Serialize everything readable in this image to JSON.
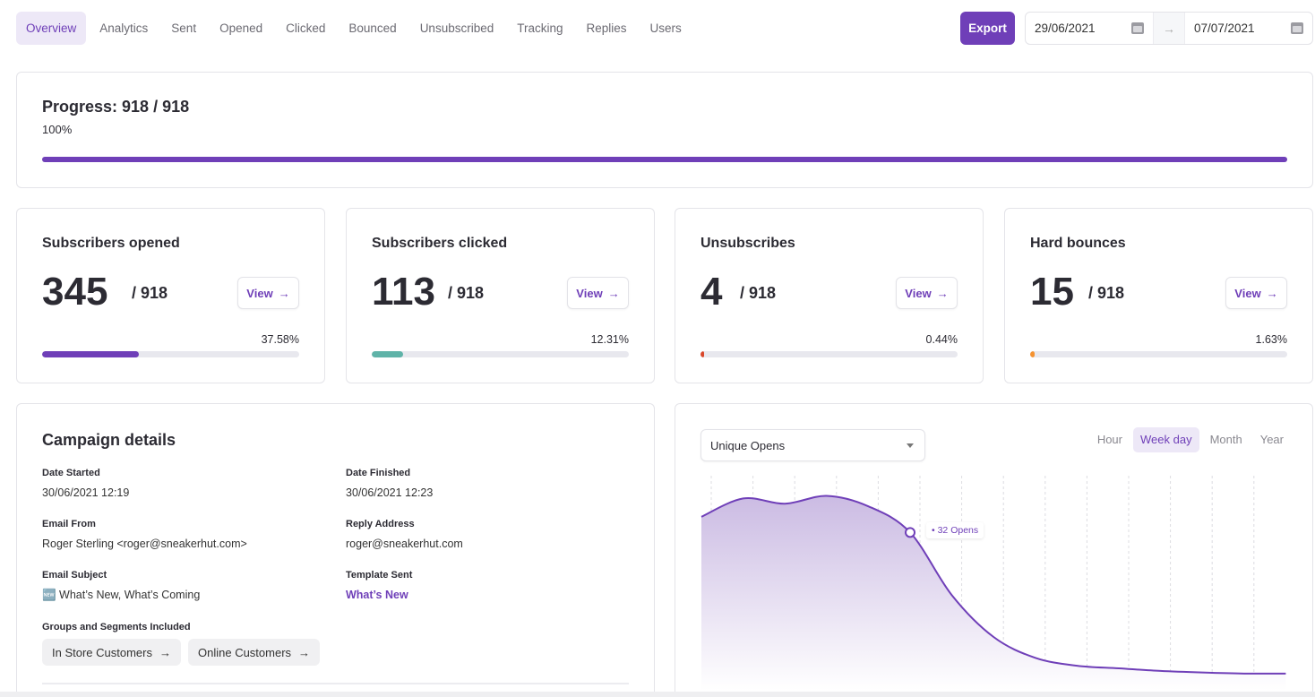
{
  "nav": {
    "tabs": [
      {
        "label": "Overview",
        "active": true
      },
      {
        "label": "Analytics"
      },
      {
        "label": "Sent"
      },
      {
        "label": "Opened"
      },
      {
        "label": "Clicked"
      },
      {
        "label": "Bounced"
      },
      {
        "label": "Unsubscribed"
      },
      {
        "label": "Tracking"
      },
      {
        "label": "Replies"
      },
      {
        "label": "Users"
      }
    ]
  },
  "toolbar": {
    "export_label": "Export",
    "date_from": "29/06/2021",
    "date_to": "07/07/2021",
    "arrow": "→"
  },
  "progress": {
    "title": "Progress: 918 / 918",
    "percent_label": "100%",
    "value": 1.0
  },
  "stats": [
    {
      "title": "Subscribers opened",
      "value": "345",
      "total": "/ 918",
      "percent": "37.58%",
      "fraction": 0.3758,
      "color": "#6f3fb8",
      "view_label": "View"
    },
    {
      "title": "Subscribers clicked",
      "value": "113",
      "total": "/ 918",
      "percent": "12.31%",
      "fraction": 0.1231,
      "color": "#5fb3a8",
      "view_label": "View"
    },
    {
      "title": "Unsubscribes",
      "value": "4",
      "total": "/ 918",
      "percent": "0.44%",
      "fraction": 0.0044,
      "color": "#d9482b",
      "view_label": "View"
    },
    {
      "title": "Hard bounces",
      "value": "15",
      "total": "/ 918",
      "percent": "1.63%",
      "fraction": 0.0163,
      "color": "#f59331",
      "view_label": "View"
    }
  ],
  "campaign": {
    "title": "Campaign details",
    "date_started_label": "Date Started",
    "date_started": "30/06/2021 12:19",
    "date_finished_label": "Date Finished",
    "date_finished": "30/06/2021 12:23",
    "email_from_label": "Email From",
    "email_from": "Roger Sterling <roger@sneakerhut.com>",
    "reply_label": "Reply Address",
    "reply": "roger@sneakerhut.com",
    "subject_label": "Email Subject",
    "subject": "🆕 What’s New, What’s Coming",
    "template_label": "Template Sent",
    "template": "What’s New",
    "groups_label": "Groups and Segments Included",
    "groups": [
      "In Store Customers",
      "Online Customers"
    ]
  },
  "chart_data": {
    "type": "area",
    "metric_select": "Unique Opens",
    "granularity": [
      "Hour",
      "Week day",
      "Month",
      "Year"
    ],
    "granularity_selected": "Week day",
    "values": [
      35,
      38.5,
      37.5,
      39,
      37,
      32,
      20,
      12,
      8,
      6.5,
      6,
      5.5,
      5.2,
      5,
      5
    ],
    "tooltip": "• 32 Opens",
    "tooltip_index": 5,
    "ylim": [
      0,
      42
    ],
    "grid": "vertical dashed",
    "color": "#6f3fb8"
  }
}
